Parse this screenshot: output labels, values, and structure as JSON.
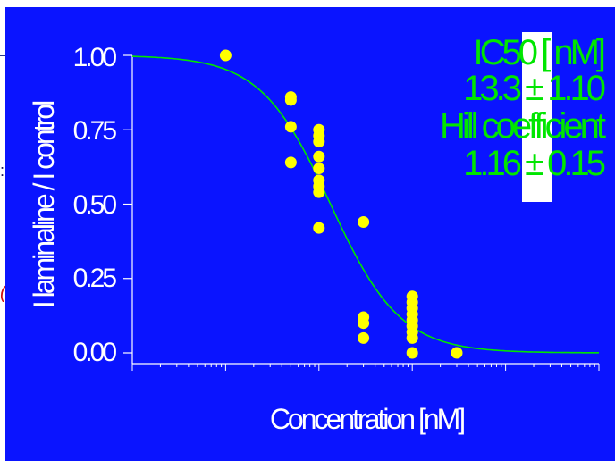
{
  "chart_data": {
    "type": "scatter",
    "xlabel": "Concentration  [nM]",
    "ylabel": "I laminaline / I control",
    "yticks": [
      "1.00",
      "0.75",
      "0.50",
      "0.25",
      "0.00"
    ],
    "xscale": "log",
    "xlim": [
      0.1,
      10000
    ],
    "ylim": [
      0,
      1
    ],
    "grid": false,
    "annotation": {
      "ic50_label": "IC50 [ nM]",
      "ic50_value": "13.3 ± 1.10",
      "hill_label": "Hill coefficient",
      "hill_value": "1.16 ± 0.15"
    },
    "fit": {
      "ic50": 13.3,
      "hill": 1.16
    },
    "points": [
      {
        "x": 1,
        "y": 1.0
      },
      {
        "x": 5,
        "y": 0.86
      },
      {
        "x": 5,
        "y": 0.85
      },
      {
        "x": 5,
        "y": 0.76
      },
      {
        "x": 5,
        "y": 0.64
      },
      {
        "x": 10,
        "y": 0.75
      },
      {
        "x": 10,
        "y": 0.73
      },
      {
        "x": 10,
        "y": 0.71
      },
      {
        "x": 10,
        "y": 0.66
      },
      {
        "x": 10,
        "y": 0.62
      },
      {
        "x": 10,
        "y": 0.58
      },
      {
        "x": 10,
        "y": 0.56
      },
      {
        "x": 10,
        "y": 0.54
      },
      {
        "x": 10,
        "y": 0.42
      },
      {
        "x": 30,
        "y": 0.44
      },
      {
        "x": 30,
        "y": 0.12
      },
      {
        "x": 30,
        "y": 0.1
      },
      {
        "x": 30,
        "y": 0.05
      },
      {
        "x": 100,
        "y": 0.19
      },
      {
        "x": 100,
        "y": 0.17
      },
      {
        "x": 100,
        "y": 0.15
      },
      {
        "x": 100,
        "y": 0.13
      },
      {
        "x": 100,
        "y": 0.11
      },
      {
        "x": 100,
        "y": 0.09
      },
      {
        "x": 100,
        "y": 0.07
      },
      {
        "x": 100,
        "y": 0.05
      },
      {
        "x": 100,
        "y": 0.0
      },
      {
        "x": 300,
        "y": 0.0
      }
    ]
  },
  "colors": {
    "background": "#0a14ff",
    "points": "#ffff00",
    "curve": "#00e600",
    "axes": "#ffffff",
    "annotation": "#00e600"
  },
  "page_fragments": {
    "left_glyph_a": ":",
    "left_glyph_b": "("
  }
}
